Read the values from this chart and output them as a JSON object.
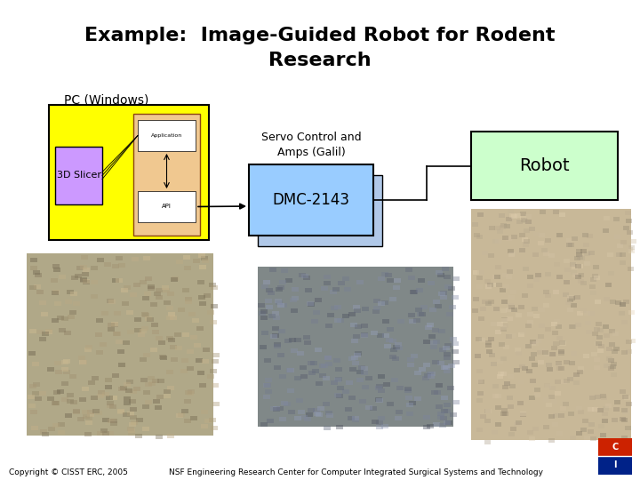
{
  "title_line1": "Example:  Image-Guided Robot for Rodent",
  "title_line2": "Research",
  "title_fontsize": 16,
  "title_fontweight": "bold",
  "bg_color": "#ffffff",
  "pc_label": "PC (Windows)",
  "pc_box_color": "#ffff00",
  "slicer_label": "3D Slicer",
  "slicer_box_color": "#cc99ff",
  "servo_label_line1": "Servo Control and",
  "servo_label_line2": "Amps (Galil)",
  "dmc_label": "DMC-2143",
  "dmc_box_color": "#99ccff",
  "dmc_shadow_color": "#b0c8e8",
  "robot_label": "Robot",
  "robot_box_color": "#ccffcc",
  "footer_left": "Copyright © CISST ERC, 2005",
  "footer_right": "NSF Engineering Research Center for Computer Integrated Surgical Systems and Technology",
  "footer_fontsize": 6.5,
  "logo_top_color": "#cc2200",
  "logo_bot_color": "#002288"
}
